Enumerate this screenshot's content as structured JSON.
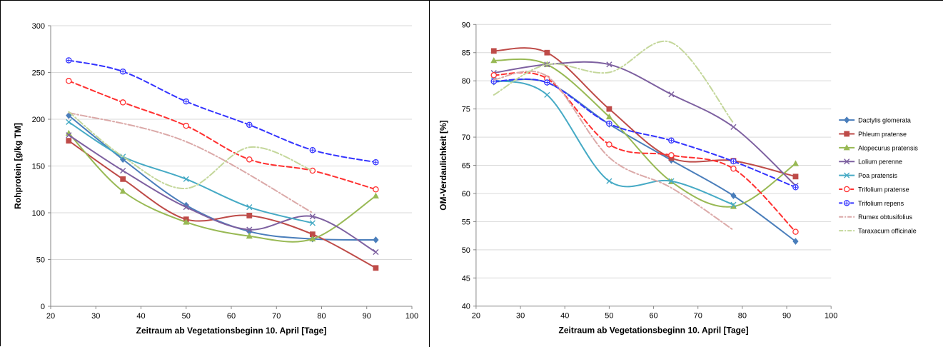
{
  "chart_data": [
    {
      "type": "line",
      "xlabel": "Zeitraum ab Vegetationsbeginn 10. April [Tage]",
      "ylabel": "Rohprotein [g/kg TM]",
      "xlim": [
        20,
        100
      ],
      "ylim": [
        0,
        300
      ],
      "xticks": [
        20,
        30,
        40,
        50,
        60,
        70,
        80,
        90,
        100
      ],
      "yticks": [
        0,
        50,
        100,
        150,
        200,
        250,
        300
      ],
      "grid": true,
      "legend": "none",
      "series": [
        {
          "name": "Dactylis glomerata",
          "color": "#4a7ebb",
          "dash": "solid",
          "marker": "diamond",
          "x": [
            24,
            36,
            50,
            64,
            78,
            92
          ],
          "y": [
            204,
            157,
            108,
            80,
            72,
            71
          ]
        },
        {
          "name": "Phleum pratense",
          "color": "#be4b48",
          "dash": "solid",
          "marker": "square",
          "x": [
            24,
            36,
            50,
            64,
            78,
            92
          ],
          "y": [
            177,
            136,
            93,
            97,
            77,
            41
          ]
        },
        {
          "name": "Alopecurus pratensis",
          "color": "#98b954",
          "dash": "solid",
          "marker": "triangle",
          "x": [
            24,
            36,
            50,
            64,
            78,
            92
          ],
          "y": [
            185,
            123,
            90,
            75,
            72,
            118
          ]
        },
        {
          "name": "Lolium perenne",
          "color": "#7d60a0",
          "dash": "solid",
          "marker": "x",
          "x": [
            24,
            36,
            50,
            64,
            78,
            92
          ],
          "y": [
            183,
            145,
            106,
            82,
            96,
            58
          ]
        },
        {
          "name": "Poa pratensis",
          "color": "#46aac5",
          "dash": "solid",
          "marker": "x",
          "x": [
            24,
            36,
            50,
            64,
            78
          ],
          "y": [
            197,
            160,
            136,
            106,
            89
          ]
        },
        {
          "name": "Trifolium pratense",
          "color": "#ff3030",
          "dash": "dash",
          "marker": "circle",
          "x": [
            24,
            36,
            50,
            64,
            78,
            92
          ],
          "y": [
            241,
            218,
            193,
            157,
            145,
            125
          ]
        },
        {
          "name": "Trifolium repens",
          "color": "#3333ff",
          "dash": "dash",
          "marker": "circle-plus",
          "x": [
            24,
            36,
            50,
            64,
            78,
            92
          ],
          "y": [
            263,
            251,
            219,
            194,
            167,
            154
          ]
        },
        {
          "name": "Rumex obtusifolius",
          "color": "#dba9a8",
          "dash": "dashdot",
          "marker": "none",
          "x": [
            24,
            50,
            78
          ],
          "y": [
            207,
            176,
            100
          ]
        },
        {
          "name": "Taraxacum officinale",
          "color": "#c4d79b",
          "dash": "dashdot",
          "marker": "none",
          "x": [
            24,
            36,
            50,
            64,
            78
          ],
          "y": [
            208,
            160,
            126,
            170,
            145
          ]
        }
      ]
    },
    {
      "type": "line",
      "xlabel": "Zeitraum ab Vegetationsbeginn 10. April [Tage]",
      "ylabel": "OM-Verdaulichkeit [%]",
      "xlim": [
        20,
        100
      ],
      "ylim": [
        40,
        90
      ],
      "xticks": [
        20,
        30,
        40,
        50,
        60,
        70,
        80,
        90,
        100
      ],
      "yticks": [
        40,
        45,
        50,
        55,
        60,
        65,
        70,
        75,
        80,
        85,
        90
      ],
      "grid": true,
      "legend": "right",
      "series": [
        {
          "name": "Dactylis glomerata",
          "color": "#4a7ebb",
          "dash": "solid",
          "marker": "diamond",
          "x": [
            24,
            36,
            50,
            64,
            78,
            92
          ],
          "y": [
            79.8,
            79.7,
            72.3,
            65.9,
            59.6,
            51.5
          ]
        },
        {
          "name": "Phleum pratense",
          "color": "#be4b48",
          "dash": "solid",
          "marker": "square",
          "x": [
            24,
            36,
            50,
            64,
            78,
            92
          ],
          "y": [
            85.3,
            85.0,
            75.0,
            66.3,
            65.8,
            63.0
          ]
        },
        {
          "name": "Alopecurus pratensis",
          "color": "#98b954",
          "dash": "solid",
          "marker": "triangle",
          "x": [
            24,
            36,
            50,
            64,
            78,
            92
          ],
          "y": [
            83.6,
            82.9,
            73.6,
            62.1,
            57.7,
            65.3
          ]
        },
        {
          "name": "Lolium perenne",
          "color": "#7d60a0",
          "dash": "solid",
          "marker": "x",
          "x": [
            24,
            36,
            50,
            64,
            78,
            92
          ],
          "y": [
            81.4,
            82.9,
            82.9,
            77.6,
            71.8,
            61.4
          ]
        },
        {
          "name": "Poa pratensis",
          "color": "#46aac5",
          "dash": "solid",
          "marker": "x",
          "x": [
            24,
            36,
            50,
            64,
            78
          ],
          "y": [
            80.1,
            77.5,
            62.2,
            62.2,
            58.0
          ]
        },
        {
          "name": "Trifolium pratense",
          "color": "#ff3030",
          "dash": "dash",
          "marker": "circle",
          "x": [
            24,
            36,
            50,
            64,
            78,
            92
          ],
          "y": [
            81.0,
            80.4,
            68.7,
            66.8,
            64.4,
            53.2
          ]
        },
        {
          "name": "Trifolium repens",
          "color": "#3333ff",
          "dash": "dash",
          "marker": "circle-plus",
          "x": [
            24,
            36,
            50,
            64,
            78,
            92
          ],
          "y": [
            79.9,
            79.7,
            72.4,
            69.4,
            65.7,
            61.1
          ]
        },
        {
          "name": "Rumex obtusifolius",
          "color": "#dba9a8",
          "dash": "dashdot",
          "marker": "none",
          "x": [
            24,
            36,
            50,
            64,
            78
          ],
          "y": [
            80.2,
            80.8,
            66.4,
            61.0,
            53.5
          ]
        },
        {
          "name": "Taraxacum officinale",
          "color": "#c4d79b",
          "dash": "dashdot",
          "marker": "none",
          "x": [
            24,
            36,
            50,
            64,
            78
          ],
          "y": [
            77.5,
            82.9,
            81.5,
            86.8,
            72.5
          ]
        }
      ]
    }
  ]
}
